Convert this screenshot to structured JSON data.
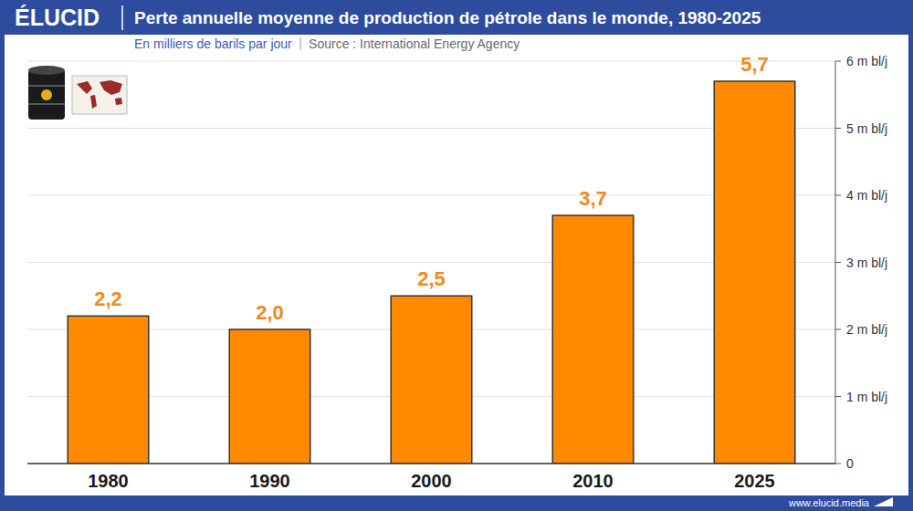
{
  "chart_data": {
    "type": "bar",
    "brand": "ÉLUCID",
    "title": "Perte annuelle moyenne de production de pétrole dans le monde, 1980-2025",
    "subtitle": "En milliers de barils par jour",
    "source": "Source : International Energy Agency",
    "footer": "www.elucid.media",
    "categories": [
      "1980",
      "1990",
      "2000",
      "2010",
      "2025"
    ],
    "values": [
      2.2,
      2.0,
      2.5,
      3.7,
      5.7
    ],
    "value_labels": [
      "2,2",
      "2,0",
      "2,5",
      "3,7",
      "5,7"
    ],
    "color": "#ff8a00",
    "ylim": [
      0,
      6
    ],
    "yticks": [
      0,
      {
        "value": 1,
        "label": "1 m bl/j"
      },
      {
        "value": 2,
        "label": "2 m bl/j"
      },
      {
        "value": 3,
        "label": "3 m bl/j"
      },
      {
        "value": 4,
        "label": "4 m bl/j"
      },
      {
        "value": 5,
        "label": "5 m bl/j"
      },
      {
        "value": 6,
        "label": "6 m bl/j"
      }
    ],
    "grid": true,
    "data_labels": true
  }
}
